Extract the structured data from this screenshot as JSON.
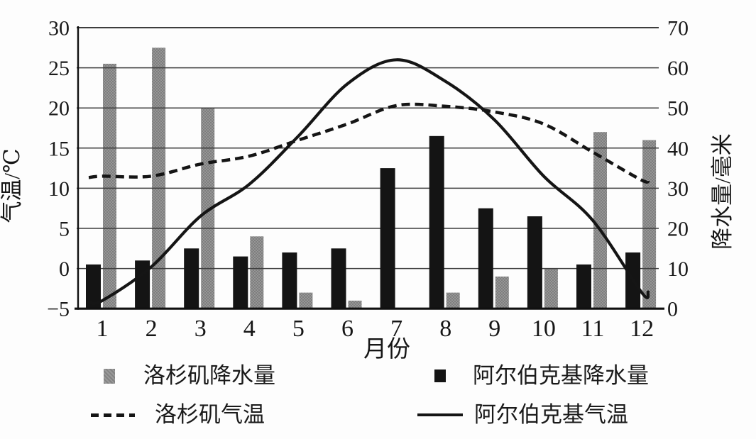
{
  "figure": {
    "background": "#fdfdfd",
    "x_axis_title": "月份",
    "left_axis_title": "气温/℃",
    "right_axis_title": "降水量/毫米"
  },
  "legend": {
    "position": "bottom",
    "items": [
      {
        "label": "洛杉矶降水量",
        "swatch": "gray-square"
      },
      {
        "label": "阿尔伯克基降水量",
        "swatch": "black-square"
      },
      {
        "label": "洛杉矶气温",
        "swatch": "dashed-line"
      },
      {
        "label": "阿尔伯克基气温",
        "swatch": "solid-line"
      }
    ]
  },
  "chart_data": {
    "type": "combo-bar-line",
    "categories": [
      1,
      2,
      3,
      4,
      5,
      6,
      7,
      8,
      9,
      10,
      11,
      12
    ],
    "xlabel": "月份",
    "grid": true,
    "legend_position": "bottom",
    "axes": {
      "left": {
        "title": "气温/℃",
        "unit": "°C",
        "range": [
          -5,
          30
        ],
        "ticks": [
          30,
          25,
          20,
          15,
          10,
          5,
          0,
          -5
        ]
      },
      "right": {
        "title": "降水量/毫米",
        "unit": "mm",
        "range": [
          0,
          70
        ],
        "ticks": [
          70,
          60,
          50,
          40,
          30,
          20,
          10,
          0
        ]
      }
    },
    "series": [
      {
        "name": "洛杉矶降水量",
        "type": "bar",
        "axis": "right",
        "color": "#8c8c8c",
        "values": [
          61,
          65,
          50,
          18,
          4,
          2,
          0,
          4,
          8,
          10,
          44,
          42
        ]
      },
      {
        "name": "阿尔伯克基降水量",
        "type": "bar",
        "axis": "right",
        "color": "#141414",
        "values": [
          11,
          12,
          15,
          13,
          14,
          15,
          35,
          43,
          25,
          23,
          11,
          14
        ]
      },
      {
        "name": "洛杉矶气温",
        "type": "line",
        "line_style": "dashed",
        "axis": "left",
        "color": "#151515",
        "values": [
          11.5,
          11.5,
          13,
          14,
          16,
          18,
          20.3,
          20.2,
          19.5,
          18,
          14.5,
          11
        ]
      },
      {
        "name": "阿尔伯克基气温",
        "type": "line",
        "line_style": "solid",
        "axis": "left",
        "color": "#151515",
        "values": [
          -4,
          0.2,
          6.5,
          10.5,
          16.5,
          23,
          26,
          23.3,
          18.5,
          11.5,
          6,
          -3
        ]
      }
    ]
  }
}
